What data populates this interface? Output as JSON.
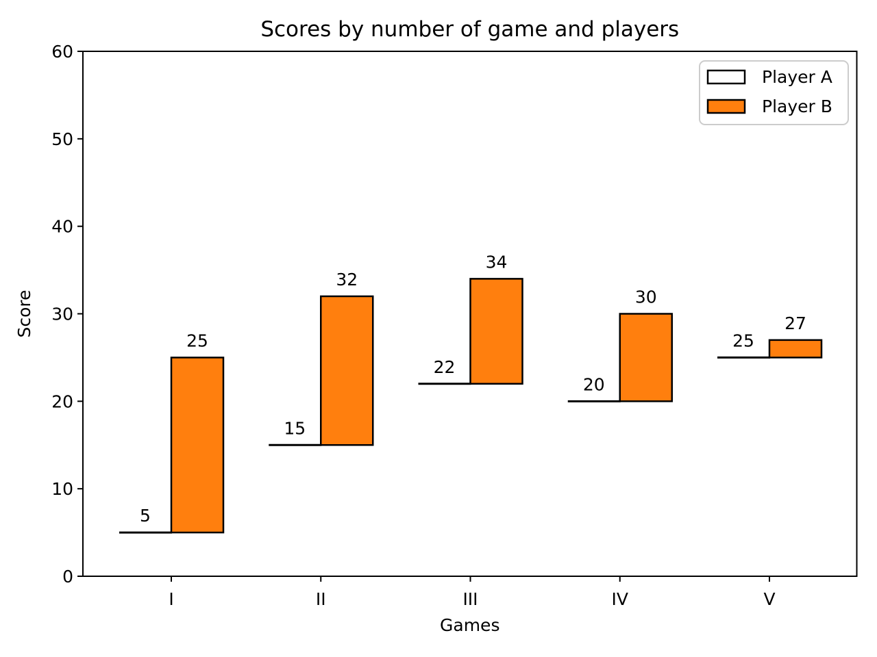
{
  "figure": {
    "background": "#ffffff",
    "text_color": "#000000",
    "spine_color": "#000000",
    "legend_border_color": "#cccccc"
  },
  "chart_data": {
    "type": "bar",
    "title": "Scores by number of game and players",
    "xlabel": "Games",
    "ylabel": "Score",
    "categories": [
      "I",
      "II",
      "III",
      "IV",
      "V"
    ],
    "series": [
      {
        "name": "Player A",
        "values": [
          5,
          15,
          22,
          20,
          25
        ],
        "labels": [
          "5",
          "15",
          "22",
          "20",
          "25"
        ],
        "fill": "#ffffff",
        "edge": "#000000",
        "render_style": "top-edge-line"
      },
      {
        "name": "Player B",
        "values": [
          25,
          32,
          34,
          30,
          27
        ],
        "labels": [
          "25",
          "32",
          "34",
          "30",
          "27"
        ],
        "bottom": [
          5,
          15,
          22,
          20,
          25
        ],
        "fill": "#ff7f0e",
        "edge": "#000000",
        "render_style": "filled-bar"
      }
    ],
    "ylim": [
      0,
      60
    ],
    "yticks": [
      0,
      10,
      20,
      30,
      40,
      50,
      60
    ],
    "grid": false,
    "legend": {
      "position": "upper right",
      "entries": [
        "Player A",
        "Player B"
      ]
    }
  }
}
